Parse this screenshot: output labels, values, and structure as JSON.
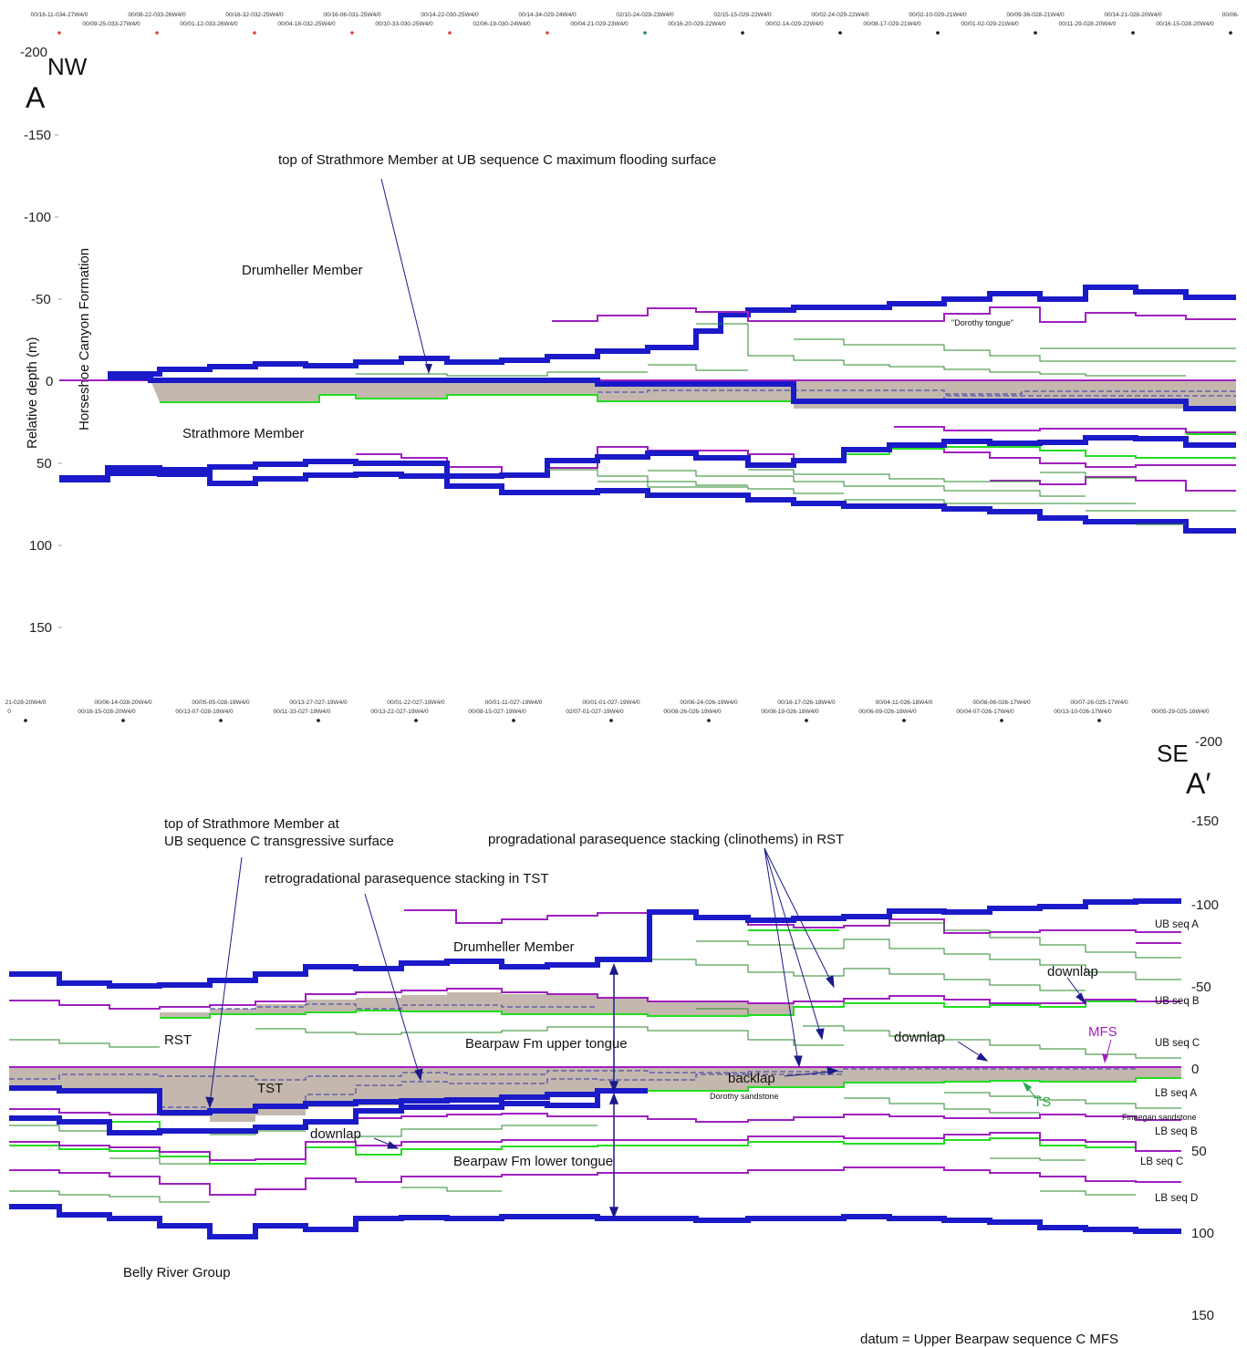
{
  "top_panel": {
    "wells_row1": [
      "00/16-11-034-27W4/0",
      "00/08-22-033-26W4/0",
      "00/16-32-032-25W4/0",
      "00/16-06-031-25W4/0",
      "00/14-22-030-25W4/0",
      "00/14-34-029-24W4/0",
      "02/10-24-029-23W4/0",
      "02/15-15-029-22W4/0",
      "00/02-24-029-22W4/0",
      "00/02-10-029-21W4/0",
      "00/09-36-028-21W4/0",
      "00/14-21-028-20W4/0",
      "00/06-"
    ],
    "wells_row2": [
      "00/09-25-033-27W4/0",
      "00/01-12-033-26W4/0",
      "00/04-18-032-25W4/0",
      "00/10-33-030-25W4/0",
      "02/06-19-030-24W4/0",
      "00/04-21-029-23W4/0",
      "00/16-20-029-22W4/0",
      "00/02-14-029-22W4/0",
      "00/08-17-029-21W4/0",
      "00/01-02-029-21W4/0",
      "00/11-29-028-20W4/0",
      "00/16-15-028-20W4/0"
    ],
    "direction": "NW",
    "section_letter": "A",
    "y_ticks": [
      "-200",
      "-150",
      "-100",
      "-50",
      "0",
      "50",
      "100",
      "150"
    ],
    "y_label": "Relative depth (m)",
    "formation_label": "Horseshoe Canyon Formation",
    "annotations": {
      "top_strathmore": "top of Strathmore Member at UB sequence C maximum flooding surface",
      "drumheller": "Drumheller Member",
      "strathmore": "Strathmore Member",
      "dorothy_tongue": "\"Dorothy tongue\""
    }
  },
  "bottom_panel": {
    "wells_row1": [
      "21-028-20W4/0",
      "00/06-14-028-20W4/0",
      "00/05-05-028-19W4/0",
      "00/13-27-027-19W4/0",
      "00/01-22-027-19W4/0",
      "00/01-11-027-19W4/0",
      "00/01-01-027-19W4/0",
      "00/06-24-026-19W4/0",
      "00/16-17-026-18W4/0",
      "00/04-11-026-18W4/0",
      "00/08-06-026-17W4/0",
      "00/07-26-025-17W4/0"
    ],
    "wells_row2": [
      "0",
      "00/16-15-028-20W4/0",
      "00/13-07-028-19W4/0",
      "00/11-33-027-19W4/0",
      "00/13-22-027-19W4/0",
      "00/08-15-027-19W4/0",
      "02/07-01-027-19W4/0",
      "00/08-26-026-19W4/0",
      "00/08-19-026-18W4/0",
      "00/06-09-026-18W4/0",
      "00/04-07-026-17W4/0",
      "00/13-10-026-17W4/0",
      "00/05-29-025-16W4/0"
    ],
    "direction": "SE",
    "section_letter": "A′",
    "y_ticks": [
      "-200",
      "-150",
      "-100",
      "-50",
      "0",
      "50",
      "100",
      "150"
    ],
    "annotations": {
      "top_strath_1": "top of Strathmore Member at",
      "top_strath_2": "UB sequence C transgressive surface",
      "progradational": "progradational parasequence stacking (clinothems) in RST",
      "retrogradational": "retrogradational parasequence stacking in TST",
      "drumheller": "Drumheller Member",
      "rst": "RST",
      "tst": "TST",
      "bearpaw_upper": "Bearpaw Fm upper tongue",
      "bearpaw_lower": "Bearpaw Fm lower tongue",
      "backlap": "backlap",
      "dorothy_sandstone": "Dorothy sandstone",
      "downlap": "downlap",
      "mfs": "MFS",
      "ts": "TS",
      "belly_river": "Belly River Group",
      "finnegan": "Finnegan sandstone",
      "datum": "datum = Upper Bearpaw sequence C MFS"
    },
    "sequence_labels": [
      "UB seq A",
      "UB seq B",
      "UB seq C",
      "LB seq A",
      "LB seq B",
      "LB seq C",
      "LB seq D"
    ]
  },
  "colors": {
    "thick_boundary": "#1a1ac8",
    "mfs": "#a020c0",
    "ts": "#22dd22",
    "parasequence": "#2a8a2a",
    "fill": "#c4b8ae",
    "dashed": "#3333aa"
  }
}
